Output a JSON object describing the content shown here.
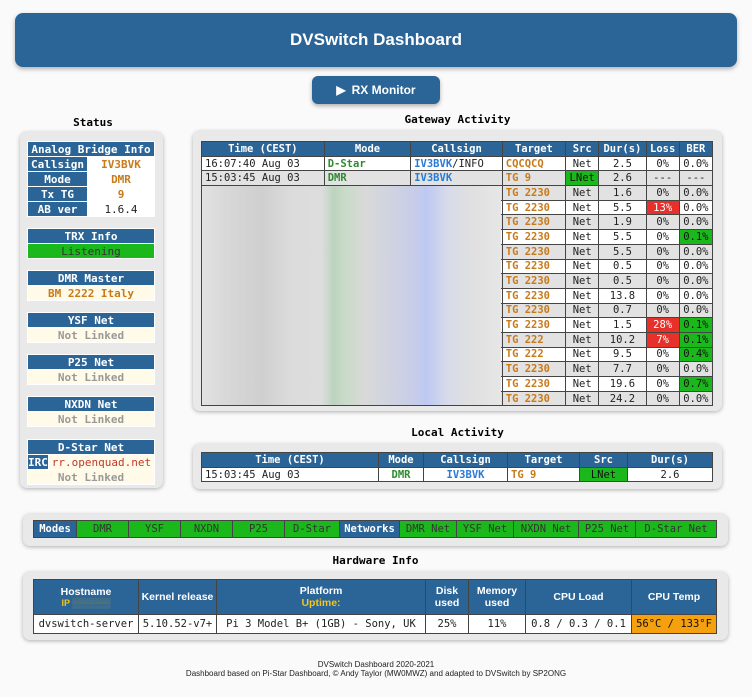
{
  "header": {
    "title": "DVSwitch Dashboard"
  },
  "rx_button": {
    "label": "RX Monitor"
  },
  "status": {
    "title": "Status",
    "ab": {
      "title": "Analog Bridge Info",
      "rows": [
        {
          "label": "Callsign",
          "value": "IV3BVK"
        },
        {
          "label": "Mode",
          "value": "DMR"
        },
        {
          "label": "Tx TG",
          "value": "9"
        },
        {
          "label": "AB ver",
          "value": "1.6.4"
        }
      ]
    },
    "trx": {
      "title": "TRX Info",
      "value": "Listening"
    },
    "dmr": {
      "title": "DMR Master",
      "value": "BM 2222 Italy"
    },
    "ysf": {
      "title": "YSF Net",
      "value": "Not Linked"
    },
    "p25": {
      "title": "P25 Net",
      "value": "Not Linked"
    },
    "nxdn": {
      "title": "NXDN Net",
      "value": "Not Linked"
    },
    "dstar": {
      "title": "D-Star Net",
      "irc_label": "IRC",
      "irc_value": "rr.openquad.net",
      "value": "Not Linked"
    }
  },
  "gateway": {
    "title": "Gateway Activity",
    "headers": [
      "Time (CEST)",
      "Mode",
      "Callsign",
      "Target",
      "Src",
      "Dur(s)",
      "Loss",
      "BER"
    ],
    "top_rows": [
      {
        "time": "16:07:40 Aug 03",
        "mode": "D-Star",
        "call": "IV3BVK",
        "call_suffix": "/INFO",
        "target": "CQCQCQ",
        "src": "Net",
        "dur": "2.5",
        "loss": "0%",
        "ber": "0.0%"
      },
      {
        "time": "15:03:45 Aug 03",
        "mode": "DMR",
        "call": "IV3BVK",
        "call_suffix": "",
        "target": "TG 9",
        "src": "LNet",
        "dur": "2.6",
        "loss": "---",
        "ber": "---"
      }
    ],
    "rows": [
      {
        "target": "TG 2230",
        "src": "Net",
        "dur": "1.6",
        "loss": "0%",
        "ber": "0.0%",
        "lc": "",
        "bc": ""
      },
      {
        "target": "TG 2230",
        "src": "Net",
        "dur": "5.5",
        "loss": "13%",
        "ber": "0.0%",
        "lc": "red",
        "bc": ""
      },
      {
        "target": "TG 2230",
        "src": "Net",
        "dur": "1.9",
        "loss": "0%",
        "ber": "0.0%",
        "lc": "",
        "bc": ""
      },
      {
        "target": "TG 2230",
        "src": "Net",
        "dur": "5.5",
        "loss": "0%",
        "ber": "0.1%",
        "lc": "",
        "bc": "green"
      },
      {
        "target": "TG 2230",
        "src": "Net",
        "dur": "5.5",
        "loss": "0%",
        "ber": "0.0%",
        "lc": "",
        "bc": ""
      },
      {
        "target": "TG 2230",
        "src": "Net",
        "dur": "0.5",
        "loss": "0%",
        "ber": "0.0%",
        "lc": "",
        "bc": ""
      },
      {
        "target": "TG 2230",
        "src": "Net",
        "dur": "0.5",
        "loss": "0%",
        "ber": "0.0%",
        "lc": "",
        "bc": ""
      },
      {
        "target": "TG 2230",
        "src": "Net",
        "dur": "13.8",
        "loss": "0%",
        "ber": "0.0%",
        "lc": "",
        "bc": ""
      },
      {
        "target": "TG 2230",
        "src": "Net",
        "dur": "0.7",
        "loss": "0%",
        "ber": "0.0%",
        "lc": "",
        "bc": ""
      },
      {
        "target": "TG 2230",
        "src": "Net",
        "dur": "1.5",
        "loss": "28%",
        "ber": "0.1%",
        "lc": "red",
        "bc": "green"
      },
      {
        "target": "TG 222",
        "src": "Net",
        "dur": "10.2",
        "loss": "7%",
        "ber": "0.1%",
        "lc": "red",
        "bc": "green"
      },
      {
        "target": "TG 222",
        "src": "Net",
        "dur": "9.5",
        "loss": "0%",
        "ber": "0.4%",
        "lc": "",
        "bc": "green"
      },
      {
        "target": "TG 2230",
        "src": "Net",
        "dur": "7.7",
        "loss": "0%",
        "ber": "0.0%",
        "lc": "",
        "bc": ""
      },
      {
        "target": "TG 2230",
        "src": "Net",
        "dur": "19.6",
        "loss": "0%",
        "ber": "0.7%",
        "lc": "",
        "bc": "green"
      },
      {
        "target": "TG 2230",
        "src": "Net",
        "dur": "24.2",
        "loss": "0%",
        "ber": "0.0%",
        "lc": "",
        "bc": ""
      }
    ]
  },
  "local": {
    "title": "Local Activity",
    "headers": [
      "Time (CEST)",
      "Mode",
      "Callsign",
      "Target",
      "Src",
      "Dur(s)"
    ],
    "row": {
      "time": "15:03:45 Aug 03",
      "mode": "DMR",
      "call": "IV3BVK",
      "target": "TG 9",
      "src": "LNet",
      "dur": "2.6"
    }
  },
  "modes": {
    "label": "Modes",
    "items": [
      "DMR",
      "YSF",
      "NXDN",
      "P25",
      "D-Star"
    ],
    "networks_label": "Networks",
    "networks": [
      "DMR Net",
      "YSF Net",
      "NXDN Net",
      "P25 Net",
      "D-Star Net"
    ]
  },
  "hardware": {
    "title": "Hardware Info",
    "headers": {
      "hostname": "Hostname",
      "ip": "IP",
      "kernel": "Kernel release",
      "platform": "Platform",
      "uptime": "Uptime:",
      "disk": "Disk used",
      "memory": "Memory used",
      "cpu_load": "CPU Load",
      "cpu_temp": "CPU Temp"
    },
    "values": {
      "hostname": "dvswitch-server",
      "kernel": "5.10.52-v7+",
      "platform": "Pi 3 Model B+ (1GB) - Sony, UK",
      "disk": "25%",
      "memory": "11%",
      "cpu_load": "0.8 / 0.3 / 0.1",
      "cpu_temp": "56°C / 133°F"
    }
  },
  "footer": {
    "line1": "DVSwitch Dashboard 2020-2021",
    "line2": "Dashboard based on Pi-Star Dashboard, © Andy Taylor (MW0MWZ) and adapted to DVSwitch by SP2ONG"
  },
  "colors": {
    "header": "#2b6496",
    "green": "#1bb81b",
    "red": "#e8302a",
    "orange": "#f5a00f",
    "target": "#c87a1b"
  }
}
